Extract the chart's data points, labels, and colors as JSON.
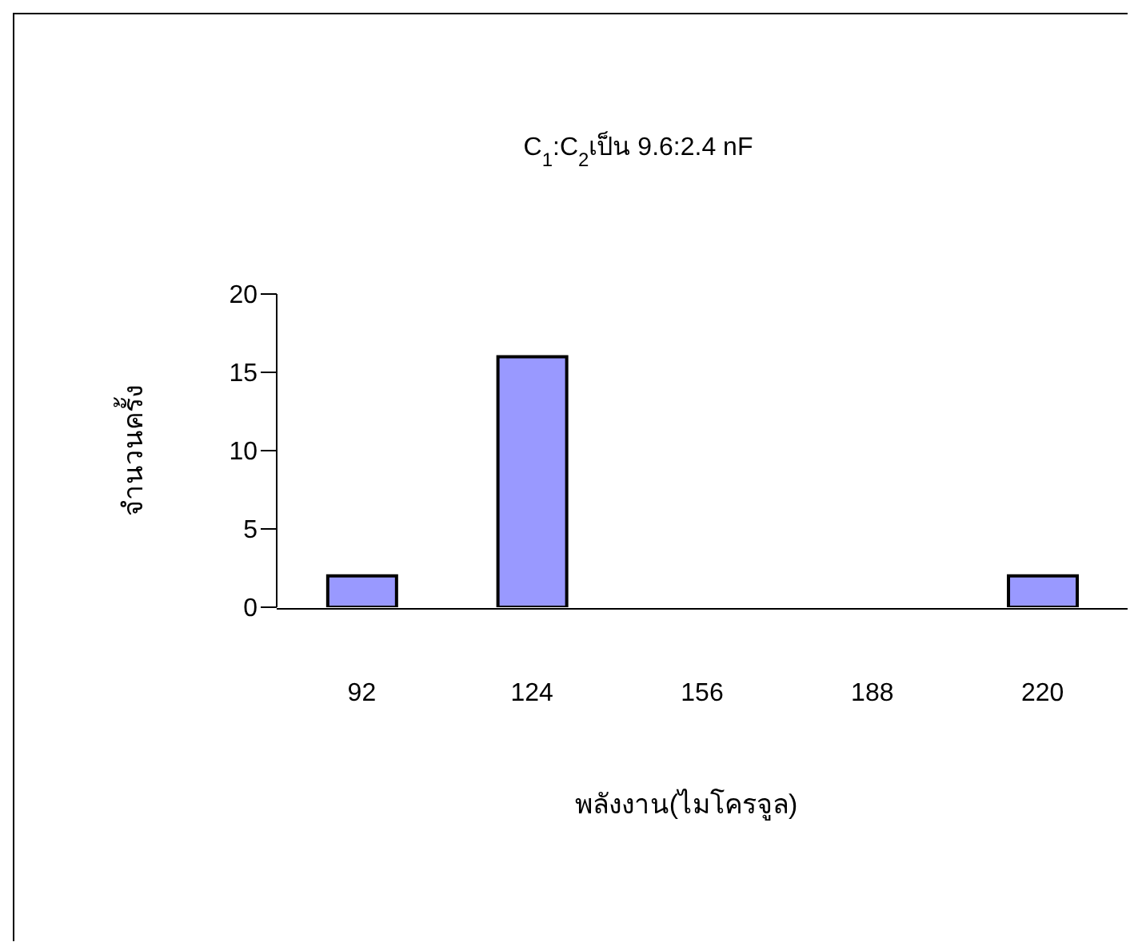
{
  "chart_data": {
    "type": "bar",
    "title": "C$_{1}$:C$_{2}$เป็น 9.6:2.4 nF",
    "xlabel": "พลังงาน(ไมโครจูล)",
    "ylabel": "จำนวนครั้ง",
    "categories": [
      "92",
      "124",
      "156",
      "188",
      "220"
    ],
    "series": [
      {
        "color": "#9999ff",
        "values": [
          2,
          16,
          0,
          0,
          2
        ]
      }
    ],
    "ylim": [
      0,
      20
    ],
    "yticks": [
      0,
      5,
      10,
      15,
      20
    ],
    "grid": false,
    "legend": false
  }
}
